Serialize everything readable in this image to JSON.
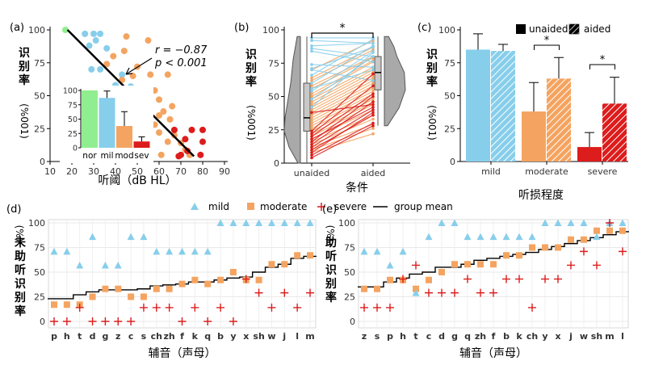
{
  "chart_data": [
    {
      "id": "a",
      "type": "scatter",
      "panel_label": "(a)",
      "xlabel": "听阈（dB HL）",
      "ylabel": "识别率",
      "ylabel_unit": "(%001)",
      "xlim": [
        10,
        90
      ],
      "ylim": [
        0,
        100
      ],
      "xticks": [
        10,
        20,
        30,
        40,
        50,
        60,
        70,
        80,
        90
      ],
      "yticks": [
        0,
        25,
        50,
        75,
        100
      ],
      "annotation": [
        "r = −0.87",
        "p < 0.001"
      ],
      "colors": {
        "normal": "#90ee90",
        "mild": "#87ceeb",
        "moderate": "#f4a460",
        "severe": "#dd1c1c",
        "line": "#000000"
      },
      "fit_line": {
        "x": [
          18,
          76
        ],
        "y": [
          100,
          4
        ]
      },
      "points": {
        "normal": [
          [
            17,
            100
          ]
        ],
        "mild": [
          [
            26,
            97
          ],
          [
            30,
            97
          ],
          [
            33,
            97
          ],
          [
            31,
            92
          ],
          [
            28,
            88
          ],
          [
            36,
            86
          ],
          [
            33,
            70
          ],
          [
            29,
            70
          ],
          [
            43,
            66
          ],
          [
            40,
            58
          ],
          [
            47,
            57
          ],
          [
            52,
            44
          ],
          [
            50,
            34
          ],
          [
            35,
            40
          ]
        ],
        "moderate": [
          [
            45,
            95
          ],
          [
            55,
            92
          ],
          [
            44,
            84
          ],
          [
            39,
            80
          ],
          [
            50,
            72
          ],
          [
            36,
            74
          ],
          [
            48,
            65
          ],
          [
            56,
            66
          ],
          [
            64,
            66
          ],
          [
            43,
            62
          ],
          [
            58,
            54
          ],
          [
            46,
            47
          ],
          [
            60,
            47
          ],
          [
            56,
            40
          ],
          [
            52,
            36
          ],
          [
            45,
            42
          ],
          [
            66,
            42
          ],
          [
            62,
            38
          ],
          [
            60,
            35
          ],
          [
            65,
            32
          ],
          [
            58,
            28
          ],
          [
            60,
            22
          ],
          [
            67,
            20
          ],
          [
            70,
            14
          ],
          [
            64,
            15
          ],
          [
            72,
            9
          ],
          [
            61,
            5
          ],
          [
            74,
            5
          ]
        ],
        "severe": [
          [
            67,
            24
          ],
          [
            75,
            24
          ],
          [
            80,
            24
          ],
          [
            80,
            15
          ],
          [
            72,
            17
          ],
          [
            73,
            8
          ],
          [
            70,
            5
          ],
          [
            79,
            5
          ],
          [
            69,
            4
          ]
        ]
      },
      "inset": {
        "type": "bar",
        "categories": [
          "nor",
          "mil",
          "mod",
          "sev"
        ],
        "values": [
          100,
          87,
          38,
          11
        ],
        "errors": [
          0,
          12,
          25,
          8
        ],
        "yticks": [
          0,
          25,
          50,
          75,
          100
        ],
        "ylim": [
          0,
          100
        ]
      }
    },
    {
      "id": "b",
      "type": "line",
      "panel_label": "(b)",
      "xlabel": "条件",
      "ylabel": "识别率",
      "ylabel_unit": "(%001)",
      "categories": [
        "unaided",
        "aided"
      ],
      "ylim": [
        0,
        100
      ],
      "yticks": [
        0,
        25,
        50,
        75,
        100
      ],
      "significance": "*",
      "boxplots": {
        "unaided": {
          "min": 0,
          "q1": 24,
          "median": 34,
          "q3": 60,
          "max": 95
        },
        "aided": {
          "min": 28,
          "q1": 55,
          "median": 68,
          "q3": 80,
          "max": 95
        }
      },
      "pairs": {
        "mild": [
          [
            94,
            94
          ],
          [
            92,
            90
          ],
          [
            88,
            90
          ],
          [
            86,
            80
          ],
          [
            84,
            76
          ],
          [
            74,
            72
          ],
          [
            71,
            87
          ],
          [
            70,
            62
          ],
          [
            66,
            93
          ],
          [
            60,
            88
          ],
          [
            56,
            70
          ],
          [
            54,
            84
          ],
          [
            48,
            80
          ],
          [
            42,
            83
          ]
        ],
        "moderate": [
          [
            70,
            92
          ],
          [
            64,
            87
          ],
          [
            62,
            85
          ],
          [
            58,
            80
          ],
          [
            56,
            79
          ],
          [
            52,
            77
          ],
          [
            50,
            76
          ],
          [
            48,
            72
          ],
          [
            46,
            70
          ],
          [
            44,
            68
          ],
          [
            42,
            66
          ],
          [
            40,
            64
          ],
          [
            38,
            62
          ],
          [
            36,
            60
          ],
          [
            34,
            58
          ],
          [
            32,
            56
          ],
          [
            30,
            54
          ],
          [
            28,
            52
          ],
          [
            26,
            50
          ],
          [
            24,
            48
          ],
          [
            22,
            46
          ],
          [
            20,
            44
          ],
          [
            18,
            40
          ],
          [
            16,
            36
          ],
          [
            14,
            33
          ],
          [
            12,
            29
          ],
          [
            10,
            26
          ],
          [
            8,
            22
          ]
        ],
        "severe": [
          [
            38,
            44
          ],
          [
            24,
            67
          ],
          [
            22,
            58
          ],
          [
            20,
            52
          ],
          [
            18,
            42
          ],
          [
            16,
            50
          ],
          [
            14,
            46
          ],
          [
            12,
            40
          ],
          [
            10,
            36
          ],
          [
            8,
            38
          ],
          [
            6,
            30
          ],
          [
            4,
            28
          ]
        ]
      }
    },
    {
      "id": "c",
      "type": "bar",
      "panel_label": "(c)",
      "xlabel": "听损程度",
      "ylabel": "识别率",
      "ylabel_unit": "(%001)",
      "categories": [
        "mild",
        "moderate",
        "severe"
      ],
      "ylim": [
        0,
        100
      ],
      "yticks": [
        0,
        25,
        50,
        75,
        100
      ],
      "legend": [
        "unaided",
        "aided"
      ],
      "colors": {
        "mild": "#87ceeb",
        "moderate": "#f4a460",
        "severe": "#dd1c1c"
      },
      "series": [
        {
          "name": "unaided",
          "values": [
            85,
            38,
            11
          ],
          "errors": [
            12,
            22,
            11
          ]
        },
        {
          "name": "aided",
          "values": [
            84,
            63,
            44
          ],
          "errors": [
            5,
            16,
            20
          ]
        }
      ],
      "significance": [
        "",
        "*",
        "*"
      ]
    },
    {
      "id": "d",
      "type": "scatter",
      "panel_label": "(d)",
      "xlabel": "辅音（声母）",
      "ylabel": "未助听识别率",
      "ylabel_unit": "(%)",
      "ylim": [
        0,
        100
      ],
      "yticks": [
        0,
        25,
        50,
        75,
        100
      ],
      "legend": [
        "mild",
        "moderate",
        "severe",
        "group mean"
      ],
      "categories": [
        "p",
        "h",
        "t",
        "d",
        "g",
        "z",
        "c",
        "s",
        "ch",
        "zh",
        "f",
        "k",
        "q",
        "b",
        "y",
        "x",
        "sh",
        "w",
        "j",
        "l",
        "m"
      ],
      "mild": [
        71,
        71,
        57,
        86,
        57,
        57,
        86,
        86,
        71,
        71,
        71,
        71,
        71,
        100,
        100,
        100,
        100,
        100,
        100,
        100,
        100
      ],
      "moderate": [
        17,
        17,
        17,
        25,
        33,
        33,
        25,
        25,
        33,
        33,
        38,
        42,
        38,
        42,
        50,
        42,
        42,
        58,
        58,
        67,
        67
      ],
      "severe": [
        0,
        0,
        14,
        0,
        0,
        0,
        0,
        14,
        14,
        14,
        0,
        14,
        0,
        14,
        0,
        43,
        29,
        14,
        29,
        14,
        29
      ],
      "group_mean": [
        23,
        23,
        27,
        30,
        32,
        32,
        32,
        33,
        36,
        37,
        38,
        40,
        40,
        42,
        44,
        45,
        50,
        55,
        58,
        64,
        66
      ]
    },
    {
      "id": "e",
      "type": "scatter",
      "panel_label": "(e)",
      "xlabel": "辅音（声母）",
      "ylabel": "助听识别率",
      "ylabel_unit": "(%)",
      "ylim": [
        0,
        100
      ],
      "yticks": [
        0,
        25,
        50,
        75,
        100
      ],
      "categories": [
        "z",
        "s",
        "p",
        "h",
        "t",
        "c",
        "d",
        "g",
        "q",
        "zh",
        "f",
        "b",
        "k",
        "ch",
        "y",
        "x",
        "j",
        "w",
        "sh",
        "m",
        "l"
      ],
      "mild": [
        71,
        71,
        57,
        71,
        29,
        86,
        100,
        100,
        86,
        86,
        86,
        86,
        86,
        86,
        100,
        100,
        100,
        100,
        86,
        100,
        100
      ],
      "moderate": [
        33,
        33,
        42,
        42,
        33,
        42,
        50,
        58,
        58,
        58,
        58,
        67,
        67,
        75,
        75,
        75,
        83,
        83,
        92,
        92,
        92
      ],
      "severe": [
        14,
        14,
        14,
        43,
        57,
        29,
        29,
        29,
        43,
        29,
        29,
        43,
        43,
        14,
        43,
        43,
        57,
        71,
        57,
        100,
        71
      ],
      "group_mean": [
        35,
        35,
        40,
        44,
        48,
        50,
        55,
        55,
        58,
        62,
        64,
        66,
        68,
        70,
        73,
        76,
        79,
        82,
        85,
        88,
        91
      ]
    }
  ]
}
